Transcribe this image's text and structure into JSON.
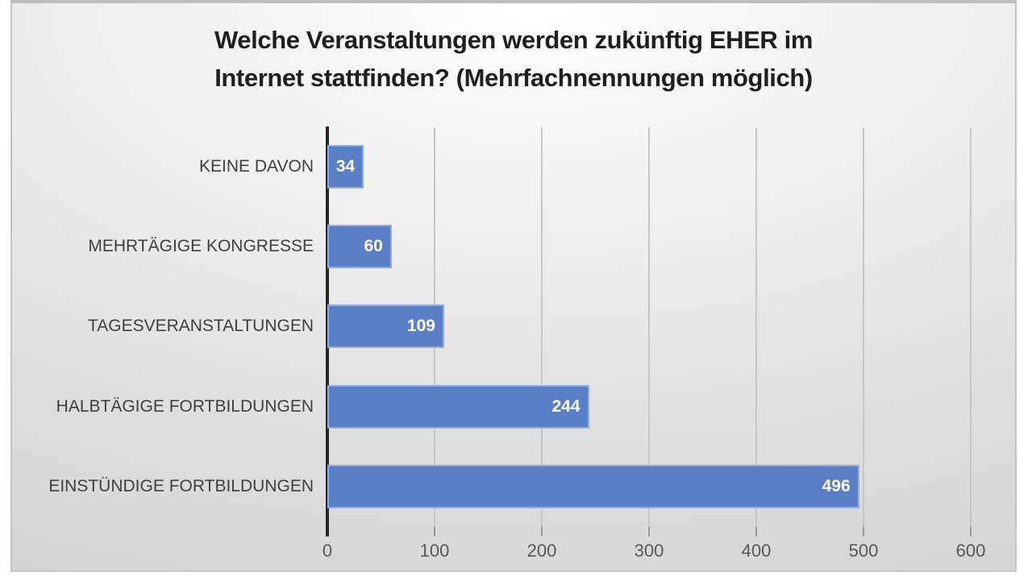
{
  "slide": {
    "background_color": "#ffffff",
    "frame_border_color": "#bdbdbd",
    "frame_fill_top": "#ffffff",
    "frame_fill_bottom": "#cfcfcf"
  },
  "chart_data": {
    "type": "bar",
    "orientation": "horizontal",
    "title": "Welche Veranstaltungen werden zukünftig EHER im Internet stattfinden? (Mehrfachnennungen möglich)",
    "title_lines": [
      "Welche Veranstaltungen werden zukünftig EHER im",
      "Internet stattfinden? (Mehrfachnennungen möglich)"
    ],
    "categories": [
      "KEINE DAVON",
      "MEHRTÄGIGE KONGRESSE",
      "TAGESVERANSTALTUNGEN",
      "HALBTÄGIGE FORTBILDUNGEN",
      "EINSTÜNDIGE FORTBILDUNGEN"
    ],
    "values": [
      34,
      60,
      109,
      244,
      496
    ],
    "xlabel": "",
    "ylabel": "",
    "xlim": [
      0,
      600
    ],
    "x_ticks": [
      0,
      100,
      200,
      300,
      400,
      500,
      600
    ],
    "grid": true,
    "legend": false,
    "data_label_position": "inside-end",
    "colors": {
      "bar": "#5a7fc7",
      "bar_value_label": "#ffffff",
      "category_label": "#3f3f3f",
      "tick_label": "#595959",
      "gridline": "#c6c6c6",
      "axis_line": "#262626",
      "title": "#1f1f1f"
    }
  }
}
